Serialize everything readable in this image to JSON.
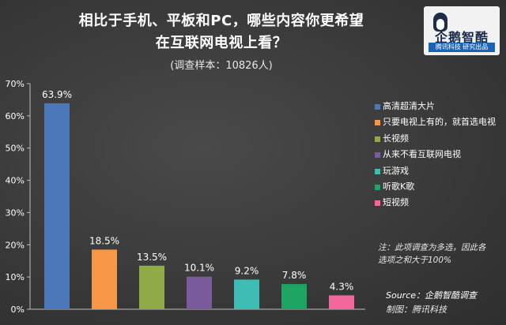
{
  "header": {
    "title_line1": "相比于手机、平板和PC，哪些内容你更希望",
    "title_line2": "在互联网电视上看？",
    "subtitle": "(调查样本：10826人)"
  },
  "logo": {
    "name": "企鹅智酷",
    "tagline": "腾讯科技 研究出品",
    "icon": "penguin-icon"
  },
  "chart_data": {
    "type": "bar",
    "categories": [
      "高清超清大片",
      "只要电视上有的，就首选电视",
      "长视频",
      "从来不看互联网电视",
      "玩游戏",
      "听歌K歌",
      "短视频"
    ],
    "values": [
      63.9,
      18.5,
      13.5,
      10.1,
      9.2,
      7.8,
      4.3
    ],
    "value_labels": [
      "63.9%",
      "18.5%",
      "13.5%",
      "10.1%",
      "9.2%",
      "7.8%",
      "4.3%"
    ],
    "colors": [
      "#4a78b8",
      "#f79646",
      "#8fac48",
      "#7a5c9c",
      "#3fbdb3",
      "#1ea463",
      "#f2689a"
    ],
    "ylim": [
      0,
      70
    ],
    "yticks": [
      "0%",
      "10%",
      "20%",
      "30%",
      "40%",
      "50%",
      "60%",
      "70%"
    ],
    "legend_placement": "right",
    "grid": false
  },
  "note": {
    "line1": "注：此项调查为多选，因此各",
    "line2": "选项之和大于100%"
  },
  "source": "Source：企鹅智酷调查",
  "maker": "制图：腾讯科技"
}
